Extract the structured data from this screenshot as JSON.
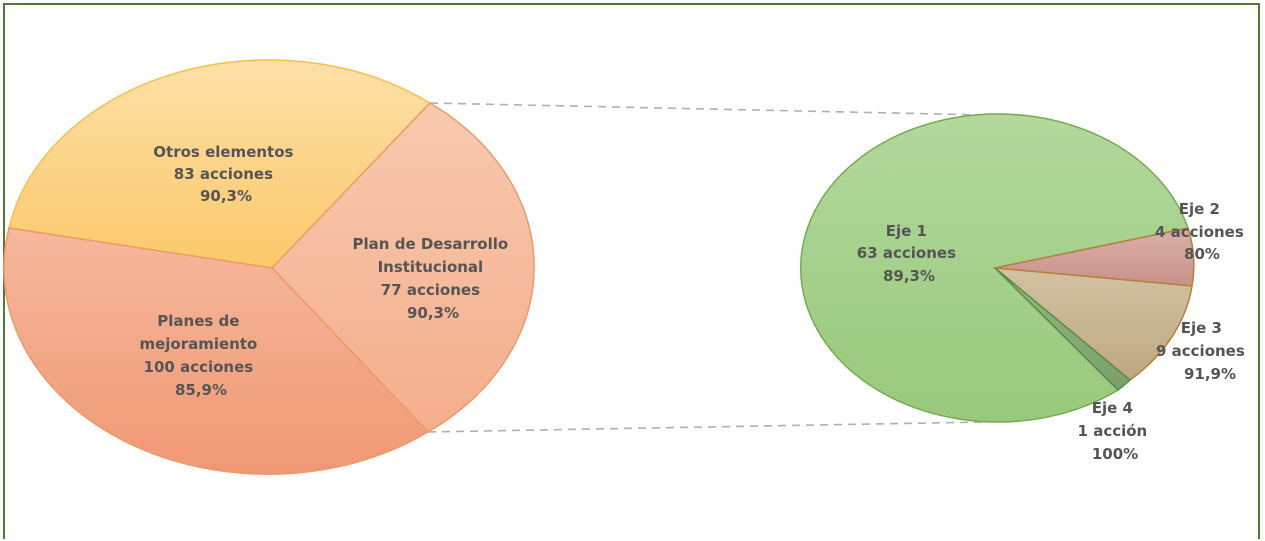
{
  "chart_data": {
    "type": "pie",
    "title": "",
    "main": {
      "slices": [
        {
          "name": "Otros elementos",
          "name_lines": [
            "Otros elementos"
          ],
          "count_label": "83 acciones",
          "pct_label": "90,3%",
          "value": 83,
          "color": "#fcd384"
        },
        {
          "name": "Plan de Desarrollo Institucional",
          "name_lines": [
            "Plan de Desarrollo",
            "Institucional"
          ],
          "count_label": "77 acciones",
          "pct_label": "90,3%",
          "value": 77,
          "color": "#f6bb9b"
        },
        {
          "name": "Planes de mejoramiento",
          "name_lines": [
            "Planes de",
            "mejoramiento"
          ],
          "count_label": "100 acciones",
          "pct_label": "85,9%",
          "value": 100,
          "color": "#f2a686"
        }
      ]
    },
    "breakdown": {
      "of": "Plan de Desarrollo Institucional",
      "slices": [
        {
          "name": "Eje 1",
          "count_label": "63 acciones",
          "pct_label": "89,3%",
          "value": 63,
          "color": "#a6d08c"
        },
        {
          "name": "Eje 2",
          "count_label": "4 acciones",
          "pct_label": "80%",
          "value": 4,
          "color": "#d3a19a"
        },
        {
          "name": "Eje 3",
          "count_label": "9 acciones",
          "pct_label": "91,9%",
          "value": 9,
          "color": "#c9b593"
        },
        {
          "name": "Eje 4",
          "count_label": "1 acción",
          "pct_label": "100%",
          "value": 1,
          "color": "#86ab78"
        }
      ]
    }
  }
}
